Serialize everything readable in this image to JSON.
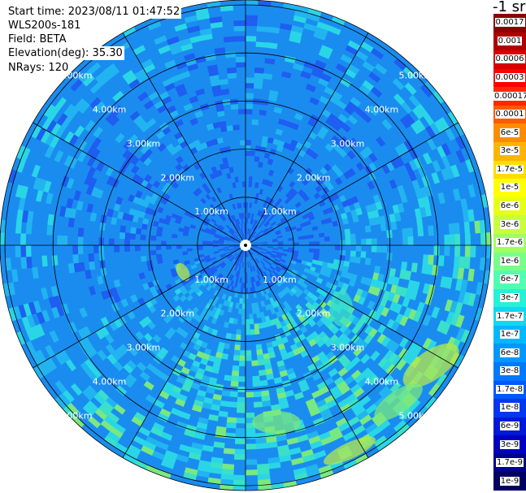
{
  "info": {
    "start_time": "Start time: 2023/08/11 01:47:52",
    "instrument": "WLS200s-181",
    "field": "Field: BETA",
    "elevation": "Elevation(deg): 35.30",
    "nrays": "NRays: 120"
  },
  "scale": {
    "unit": "-1 sr",
    "top_labels": [
      "0.0017",
      "0.001",
      "0.0006",
      "0.0003"
    ],
    "labels": [
      "0.00017",
      "0.0001",
      "6e-5",
      "3e-5",
      "1.7e-5",
      "1e-5",
      "6e-6",
      "3e-6",
      "1.7e-6",
      "1e-6",
      "6e-7",
      "3e-7",
      "1.7e-7",
      "1e-7",
      "6e-8",
      "3e-8",
      "1.7e-8",
      "1e-8",
      "6e-9",
      "3e-9",
      "1.7e-9",
      "1e-9"
    ],
    "top_colors": [
      "#8b0000",
      "#b00000",
      "#d80000",
      "#ff0000"
    ],
    "colors": [
      "#ff2800",
      "#ff5a00",
      "#ff8c00",
      "#ffb400",
      "#ffdc00",
      "#ffff00",
      "#e6ff1a",
      "#c8ff3c",
      "#a0ff60",
      "#78ff88",
      "#50ffb0",
      "#28f0d8",
      "#10d8f0",
      "#00b8ff",
      "#0098ff",
      "#0078ff",
      "#0058ff",
      "#0038ee",
      "#0018d8",
      "#0000c0",
      "#000090",
      "#000060"
    ]
  },
  "map": {
    "rings_km": [
      1,
      2,
      3,
      4,
      5
    ],
    "ring_labels": [
      "1.00km",
      "2.00km",
      "3.00km",
      "4.00km",
      "5.00km"
    ],
    "spoke_angles_deg": [
      0,
      30,
      60,
      90,
      120,
      150,
      180,
      210,
      240,
      270,
      300,
      330
    ],
    "max_range_km": 5.1,
    "colors": {
      "deep_blue": "#1e5ef0",
      "blue": "#1a8cf0",
      "light_blue": "#22b4f0",
      "cyan": "#2ad6e6",
      "teal": "#3ae0c8",
      "green": "#7ae880",
      "yellow_green": "#b6e84a",
      "grid": "#000000"
    }
  }
}
